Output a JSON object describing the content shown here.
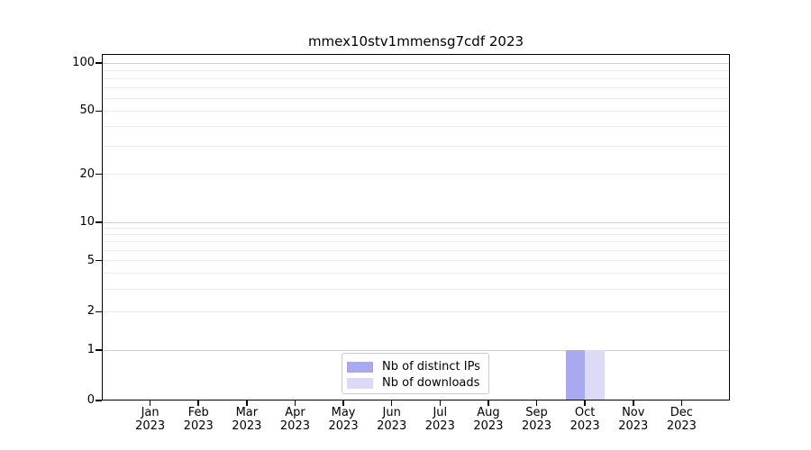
{
  "chart_data": {
    "type": "bar",
    "title": "mmex10stv1mmensg7cdf 2023",
    "categories": [
      "Jan 2023",
      "Feb 2023",
      "Mar 2023",
      "Apr 2023",
      "May 2023",
      "Jun 2023",
      "Jul 2023",
      "Aug 2023",
      "Sep 2023",
      "Oct 2023",
      "Nov 2023",
      "Dec 2023"
    ],
    "series": [
      {
        "name": "Nb of distinct IPs",
        "color": "#a9a9f0",
        "values": [
          0,
          0,
          0,
          0,
          0,
          0,
          0,
          0,
          0,
          1,
          0,
          0
        ]
      },
      {
        "name": "Nb of downloads",
        "color": "#dbdbf7",
        "values": [
          0,
          0,
          0,
          0,
          0,
          0,
          0,
          0,
          0,
          1,
          0,
          0
        ]
      }
    ],
    "yaxis": {
      "scale": "symlog",
      "ylim": [
        0,
        100
      ],
      "ticks": [
        {
          "value": 0,
          "label": "0"
        },
        {
          "value": 1,
          "label": "1"
        },
        {
          "value": 2,
          "label": "2"
        },
        {
          "value": 5,
          "label": "5"
        },
        {
          "value": 10,
          "label": "10"
        },
        {
          "value": 20,
          "label": "20"
        },
        {
          "value": 50,
          "label": "50"
        },
        {
          "value": 100,
          "label": "100"
        }
      ],
      "major_grid_values": [
        1,
        10,
        100
      ],
      "minor_grid_values": [
        2,
        3,
        4,
        5,
        6,
        7,
        8,
        9,
        20,
        30,
        40,
        50,
        60,
        70,
        80,
        90
      ]
    },
    "legend": {
      "position": "bottom-center-inside",
      "entries": [
        "Nb of distinct IPs",
        "Nb of downloads"
      ]
    },
    "grid": "on",
    "colors": {
      "major_grid": "#cfcfcf",
      "minor_grid": "#ececec",
      "spine": "#000000",
      "text": "#000000",
      "legend_border": "#cccccc",
      "background": "#ffffff"
    }
  }
}
